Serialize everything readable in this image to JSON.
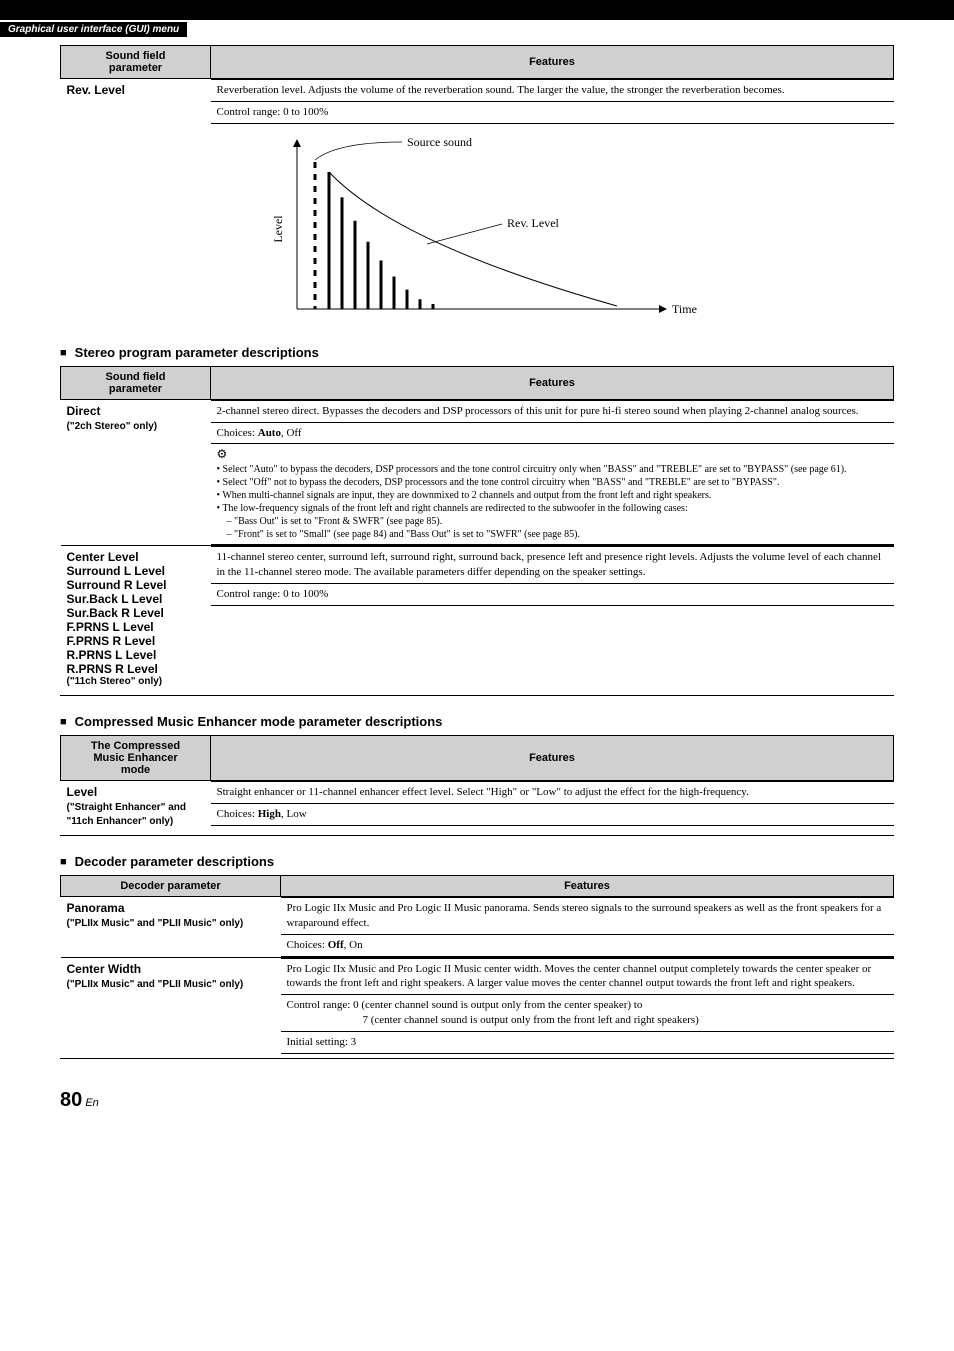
{
  "header_label": "Graphical user interface (GUI) menu",
  "table1": {
    "headers": {
      "param": "Sound field\nparameter",
      "feat": "Features"
    },
    "row": {
      "name": "Rev. Level",
      "desc": "Reverberation level. Adjusts the volume of the reverberation sound. The larger the value, the stronger the reverberation becomes.",
      "range": "Control range: 0 to 100%"
    }
  },
  "diagram": {
    "level_label": "Level",
    "source_label": "Source sound",
    "rev_label": "Rev. Level",
    "time_label": "Time",
    "bar_count": 9,
    "dash_count": 11
  },
  "stereo_title": "Stereo program parameter descriptions",
  "table2": {
    "headers": {
      "param": "Sound field\nparameter",
      "feat": "Features"
    },
    "direct": {
      "name": "Direct",
      "sub": "(\"2ch Stereo\" only)",
      "desc": "2-channel stereo direct. Bypasses the decoders and DSP processors of this unit for pure hi-fi stereo sound when playing 2-channel analog sources.",
      "choices_label": "Choices: ",
      "choices_bold": "Auto",
      "choices_rest": ", Off",
      "tip1": "Select \"Auto\" to bypass the decoders, DSP processors and the tone control circuitry only when \"BASS\" and \"TREBLE\" are set to \"BYPASS\" (see page 61).",
      "tip2": "Select \"Off\" not to bypass the decoders, DSP processors and the tone control circuitry when \"BASS\" and \"TREBLE\" are set to \"BYPASS\".",
      "tip3": "When multi-channel signals are input, they are downmixed to 2 channels and output from the front left and right speakers.",
      "tip4": "The low-frequency signals of the front left and right channels are redirected to the subwoofer in the following cases:",
      "tip4a": "\"Bass Out\" is set to \"Front & SWFR\" (see page 85).",
      "tip4b": "\"Front\" is set to \"Small\" (see page 84) and \"Bass Out\" is set to \"SWFR\" (see page 85)."
    },
    "levels": {
      "names": [
        "Center Level",
        "Surround L Level",
        "Surround R Level",
        "Sur.Back L Level",
        "Sur.Back R Level",
        "F.PRNS L Level",
        "F.PRNS R Level",
        "R.PRNS L Level",
        "R.PRNS R Level"
      ],
      "sub": "(\"11ch Stereo\" only)",
      "desc": "11-channel stereo center, surround left, surround right, surround back, presence left and presence right levels. Adjusts the volume level of each channel in the 11-channel stereo mode. The available parameters differ depending on the speaker settings.",
      "range": "Control range: 0 to 100%"
    }
  },
  "enhancer_title": "Compressed Music Enhancer mode parameter descriptions",
  "table3": {
    "headers": {
      "param": "The Compressed\nMusic Enhancer\nmode",
      "feat": "Features"
    },
    "row": {
      "name": "Level",
      "sub": "(\"Straight Enhancer\" and \"11ch Enhancer\" only)",
      "desc": "Straight enhancer or 11-channel enhancer effect level. Select \"High\" or \"Low\" to adjust the effect for the high-frequency.",
      "choices_label": "Choices: ",
      "choices_bold": "High",
      "choices_rest": ", Low"
    }
  },
  "decoder_title": "Decoder parameter descriptions",
  "table4": {
    "headers": {
      "param": "Decoder parameter",
      "feat": "Features"
    },
    "panorama": {
      "name": "Panorama",
      "sub": "(\"PLIIx Music\" and \"PLII Music\" only)",
      "desc": "Pro Logic IIx Music and Pro Logic II Music panorama. Sends stereo signals to the surround speakers as well as the front speakers for a wraparound effect.",
      "choices_label": "Choices: ",
      "choices_bold": "Off",
      "choices_rest": ", On"
    },
    "cwidth": {
      "name": "Center Width",
      "sub": "(\"PLIIx Music\" and \"PLII Music\" only)",
      "desc": "Pro Logic IIx Music and Pro Logic II Music center width. Moves the center channel output completely towards the center speaker or towards the front left and right speakers. A larger value moves the center channel output towards the front left and right speakers.",
      "range1": "Control range: 0 (center channel sound is output only from the center speaker) to",
      "range2": "7 (center channel sound is output only from the front left and right speakers)",
      "initial": "Initial setting: 3"
    }
  },
  "page_num": "80",
  "page_lang": "En"
}
